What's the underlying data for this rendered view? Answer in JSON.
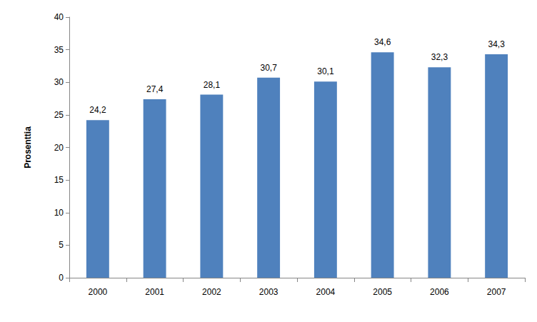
{
  "chart_data": {
    "type": "bar",
    "y_label": "Prosenttia",
    "categories": [
      "2000",
      "2001",
      "2002",
      "2003",
      "2004",
      "2005",
      "2006",
      "2007"
    ],
    "values": [
      24.2,
      27.4,
      28.1,
      30.7,
      30.1,
      34.6,
      32.3,
      34.3
    ],
    "value_labels": [
      "24,2",
      "27,4",
      "28,1",
      "30,7",
      "30,1",
      "34,6",
      "32,3",
      "34,3"
    ],
    "color": "#4f81bd",
    "ylim": [
      0,
      40
    ],
    "yticks": [
      0,
      5,
      10,
      15,
      20,
      25,
      30,
      35,
      40
    ],
    "grid": false,
    "data_labels": true
  }
}
